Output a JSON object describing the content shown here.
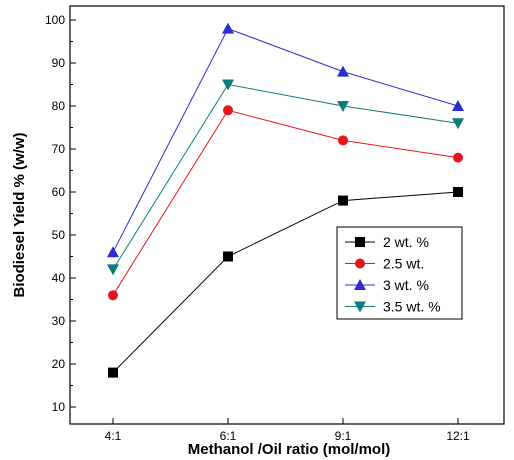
{
  "chart_data": {
    "type": "line",
    "categories": [
      "4:1",
      "6:1",
      "9:1",
      "12:1"
    ],
    "xlabel": "Methanol /Oil ratio (mol/mol)",
    "ylabel": "Biodiesel Yield % (w/w)",
    "ylim": [
      5,
      100
    ],
    "yticks": [
      10,
      20,
      30,
      40,
      50,
      60,
      70,
      80,
      90,
      100
    ],
    "grid": false,
    "legend": "center-right",
    "series": [
      {
        "name": "2 wt. %",
        "values": [
          18,
          45,
          58,
          60
        ],
        "color": "#000000",
        "marker": "square"
      },
      {
        "name": "2.5 wt.",
        "values": [
          36,
          79,
          72,
          68
        ],
        "color": "#e8141c",
        "marker": "circle"
      },
      {
        "name": "3 wt. %",
        "values": [
          46,
          98,
          88,
          80
        ],
        "color": "#2b2bcf",
        "marker": "triangle-up"
      },
      {
        "name": "3.5 wt. %",
        "values": [
          42,
          85,
          80,
          76
        ],
        "color": "#0f7b7b",
        "marker": "triangle-down"
      }
    ]
  }
}
